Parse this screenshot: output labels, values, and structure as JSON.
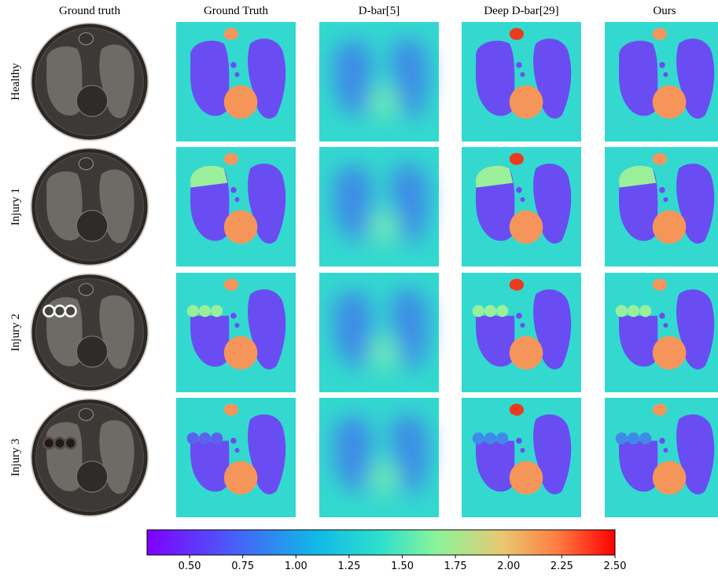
{
  "columns": [
    "Ground truth",
    "Ground Truth",
    "D-bar[5]",
    "Deep D-bar[29]",
    "Ours"
  ],
  "rows": [
    "Healthy",
    "Injury 1",
    "Injury 2",
    "Injury 3"
  ],
  "colorbar": {
    "lim": [
      0.3,
      2.5
    ],
    "ticks": [
      {
        "value": 0.5,
        "label": "0.50"
      },
      {
        "value": 0.75,
        "label": "0.75"
      },
      {
        "value": 1.0,
        "label": "1.00"
      },
      {
        "value": 1.25,
        "label": "1.25"
      },
      {
        "value": 1.5,
        "label": "1.50"
      },
      {
        "value": 1.75,
        "label": "1.75"
      },
      {
        "value": 2.0,
        "label": "2.00"
      },
      {
        "value": 2.25,
        "label": "2.25"
      },
      {
        "value": 2.5,
        "label": "2.50"
      }
    ]
  }
}
